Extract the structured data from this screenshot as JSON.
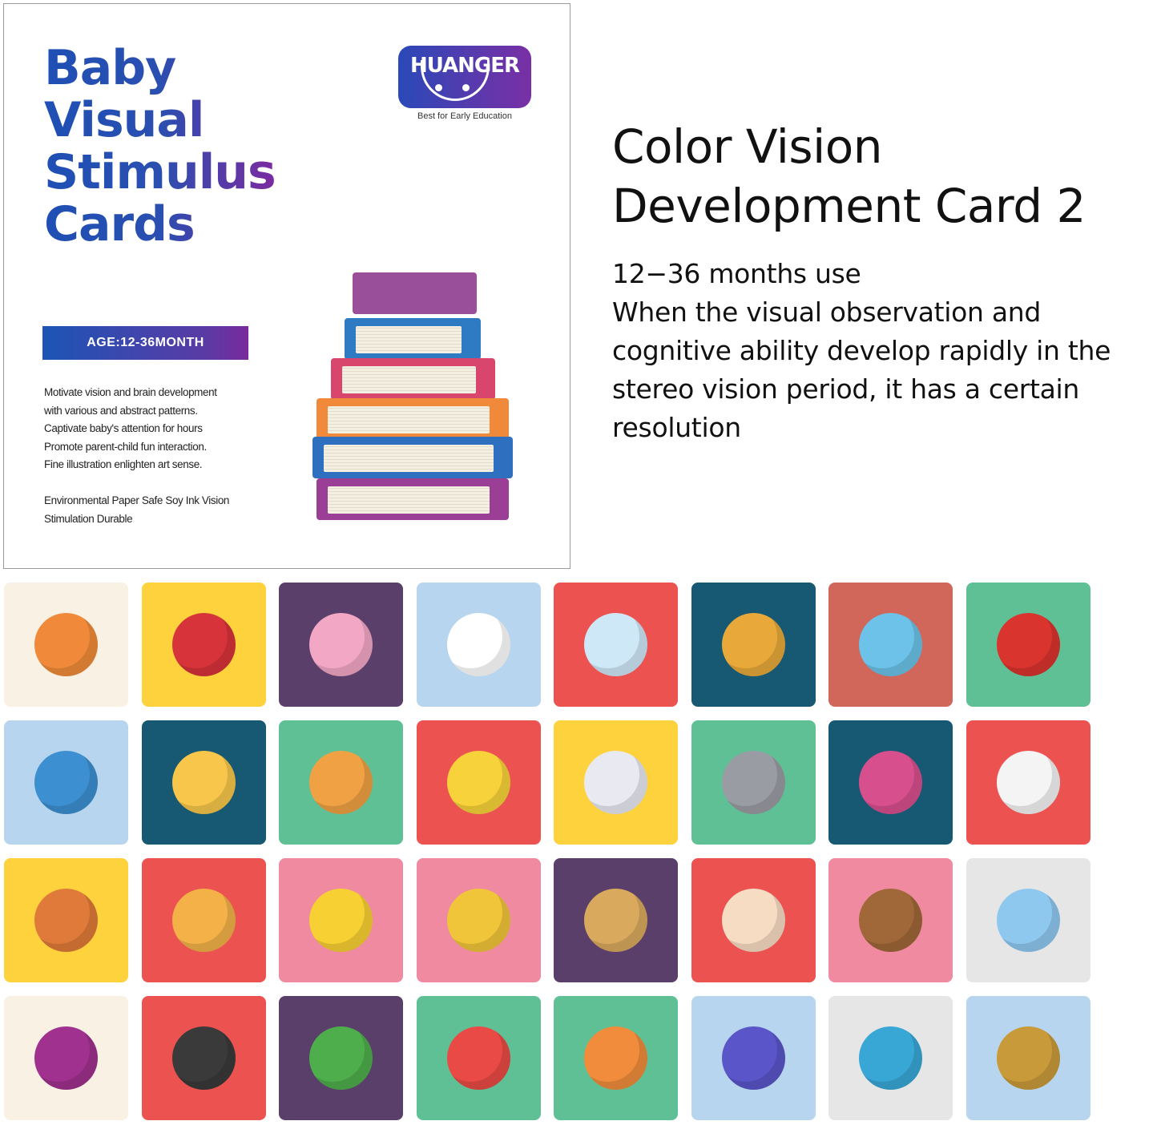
{
  "cover": {
    "title_lines": [
      "Baby",
      "Visual",
      "Stimulus",
      "Cards"
    ],
    "brand": {
      "name": "HUANGER",
      "tagline": "Best for Early Education"
    },
    "age_badge": "AGE:12-36MONTH",
    "features": [
      "Motivate vision and brain development",
      "with various and abstract patterns.",
      "Captivate baby's attention for hours",
      "Promote parent-child fun interaction.",
      "Fine illustration enlighten art sense."
    ],
    "materials": "Environmental Paper Safe Soy Ink Vision Stimulation Durable",
    "illustration": "stack-of-books",
    "colors": {
      "title_start": "#1f4fb5",
      "title_end": "#7b2aa0"
    }
  },
  "info": {
    "heading_lines": [
      "Color Vision",
      "Development Card 2"
    ],
    "age_use": "12−36 months use",
    "description": "When the visual observation and cognitive ability develop rapidly in the stereo vision period, it has a certain resolution"
  },
  "cards": [
    {
      "icon": "lollipop",
      "bg": "#f8f1e4",
      "fg": "#f08a3a"
    },
    {
      "icon": "hat",
      "bg": "#fdd23c",
      "fg": "#d6333a"
    },
    {
      "icon": "impossible-triangle",
      "bg": "#5b3f6b",
      "fg": "#f2a7c4"
    },
    {
      "icon": "table",
      "bg": "#b7d5ee",
      "fg": "#ffffff"
    },
    {
      "icon": "baby-bottle",
      "bg": "#ec5350",
      "fg": "#cfe8f7"
    },
    {
      "icon": "lantern",
      "bg": "#175872",
      "fg": "#e8a93a"
    },
    {
      "icon": "rubiks-cube",
      "bg": "#d0675a",
      "fg": "#6cc2e8"
    },
    {
      "icon": "bucket",
      "bg": "#5fc095",
      "fg": "#d9342e"
    },
    {
      "icon": "globe",
      "bg": "#b7d5ee",
      "fg": "#3c8fd0"
    },
    {
      "icon": "building-blocks",
      "bg": "#175872",
      "fg": "#f7c64a"
    },
    {
      "icon": "hamburger",
      "bg": "#5fc095",
      "fg": "#f0a144"
    },
    {
      "icon": "banana",
      "bg": "#ec5350",
      "fg": "#f8d23a"
    },
    {
      "icon": "hot-dog",
      "bg": "#fdd23c",
      "fg": "#e9e9f2"
    },
    {
      "icon": "owl",
      "bg": "#5fc095",
      "fg": "#9a9ca3"
    },
    {
      "icon": "books",
      "bg": "#175872",
      "fg": "#d7508d"
    },
    {
      "icon": "dice",
      "bg": "#ec5350",
      "fg": "#f4f4f4"
    },
    {
      "icon": "tomato",
      "bg": "#fdd23c",
      "fg": "#e07a3a"
    },
    {
      "icon": "ice-cream",
      "bg": "#ec5350",
      "fg": "#f3b148"
    },
    {
      "icon": "pencil",
      "bg": "#ef8aa0",
      "fg": "#f7d033"
    },
    {
      "icon": "corn",
      "bg": "#ef8aa0",
      "fg": "#f1c53a"
    },
    {
      "icon": "dumplings",
      "bg": "#5b3f6b",
      "fg": "#d9a95e"
    },
    {
      "icon": "cake",
      "bg": "#ec5350",
      "fg": "#f7dcc4"
    },
    {
      "icon": "abacus",
      "bg": "#ef8aa0",
      "fg": "#a06738"
    },
    {
      "icon": "hot-air-balloon",
      "bg": "#e6e6e6",
      "fg": "#8fc8ef"
    },
    {
      "icon": "spiral-ball",
      "bg": "#f8f1e4",
      "fg": "#a0318e"
    },
    {
      "icon": "camera",
      "bg": "#ec5350",
      "fg": "#3a3a3a"
    },
    {
      "icon": "potted-plant",
      "bg": "#5b3f6b",
      "fg": "#4fae4c"
    },
    {
      "icon": "daruma-doll",
      "bg": "#5fc095",
      "fg": "#e94a45"
    },
    {
      "icon": "traffic-cone",
      "bg": "#5fc095",
      "fg": "#f08c3c"
    },
    {
      "icon": "toy-car",
      "bg": "#b7d5ee",
      "fg": "#5a55c8"
    },
    {
      "icon": "pyramid",
      "bg": "#e6e6e6",
      "fg": "#38a7d6"
    },
    {
      "icon": "armchair",
      "bg": "#b7d5ee",
      "fg": "#c99a3a"
    }
  ]
}
